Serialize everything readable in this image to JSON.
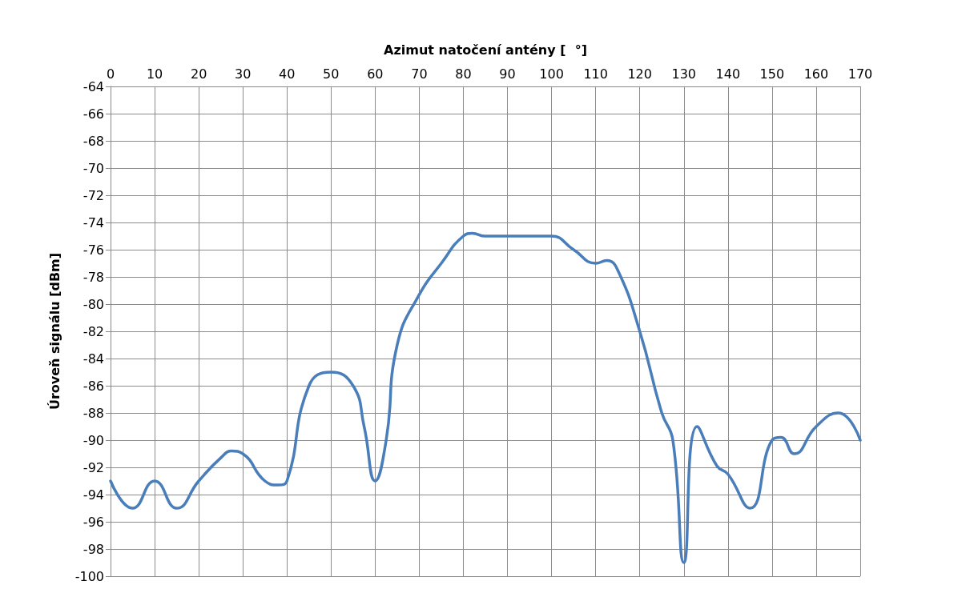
{
  "chart_data": {
    "type": "line",
    "xlabel": "Azimut natočení antény [  °]",
    "ylabel": "Úroveň signálu [dBm]",
    "xlim": [
      0,
      170
    ],
    "xticks": [
      0,
      10,
      20,
      30,
      40,
      50,
      60,
      70,
      80,
      90,
      100,
      110,
      120,
      130,
      140,
      150,
      160,
      170
    ],
    "ylim": [
      -100,
      -64
    ],
    "yticks": [
      -100,
      -98,
      -96,
      -94,
      -92,
      -90,
      -88,
      -86,
      -84,
      -82,
      -80,
      -78,
      -76,
      -74,
      -72,
      -70,
      -68,
      -66,
      -64
    ],
    "grid": true,
    "marker": "none",
    "line_style": "solid",
    "series": [
      {
        "color": "#4a7ebb",
        "x": [
          0,
          5,
          10,
          15,
          20,
          25,
          27.5,
          30,
          35,
          38,
          40,
          45,
          50,
          55,
          57.5,
          60,
          62.5,
          65,
          70,
          75,
          80,
          82,
          85,
          90,
          95,
          100,
          105,
          110,
          112.5,
          115,
          120,
          125,
          127.5,
          130,
          133,
          137.5,
          140,
          145,
          150,
          152,
          155,
          160,
          165,
          170
        ],
        "values": [
          -93,
          -95,
          -93,
          -95,
          -93,
          -91.3,
          -90.8,
          -91,
          -93,
          -93.3,
          -93,
          -86,
          -85,
          -86,
          -89,
          -93,
          -90,
          -83,
          -79.3,
          -77,
          -75,
          -74.8,
          -75,
          -75,
          -75,
          -75,
          -76,
          -77,
          -76.8,
          -77.5,
          -82,
          -88,
          -90,
          -99,
          -89,
          -91.9,
          -92.5,
          -95,
          -90,
          -89.8,
          -91,
          -89,
          -88,
          -90
        ]
      }
    ]
  }
}
